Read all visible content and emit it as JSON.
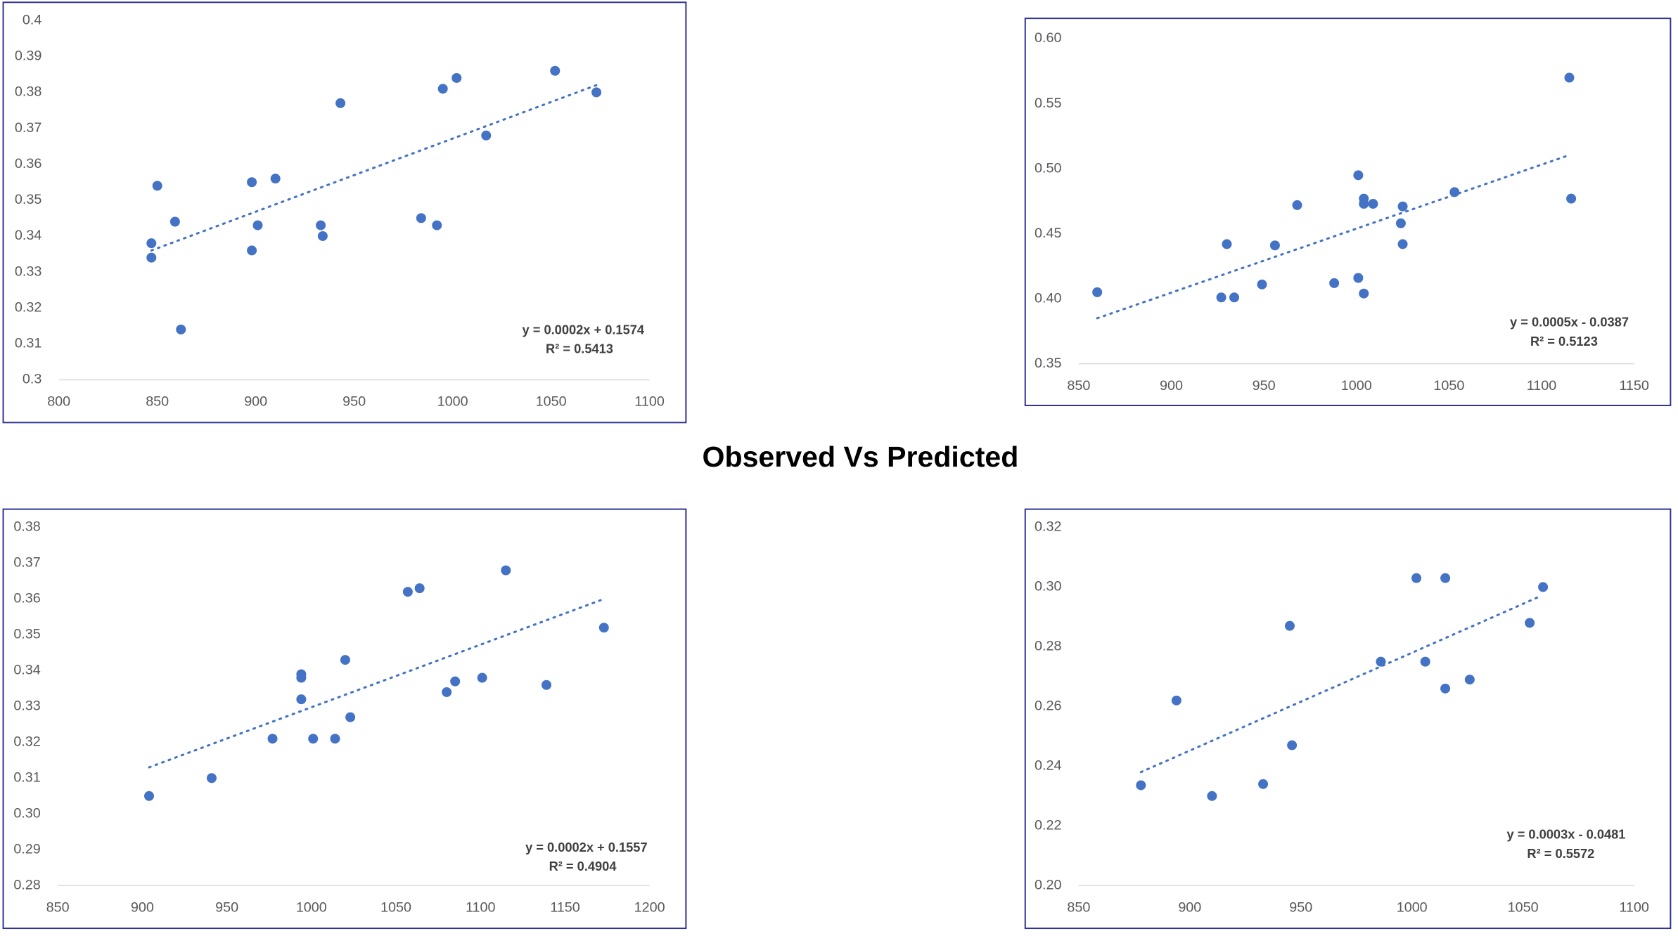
{
  "title": "Observed Vs Predicted",
  "chart_data": [
    {
      "type": "scatter",
      "color": "#4472c4",
      "x": [
        847,
        847,
        850,
        859,
        862,
        898,
        898,
        901,
        910,
        933,
        934,
        943,
        984,
        992,
        995,
        1002,
        1017,
        1052,
        1073
      ],
      "values": [
        0.338,
        0.334,
        0.354,
        0.344,
        0.314,
        0.355,
        0.336,
        0.343,
        0.356,
        0.343,
        0.34,
        0.377,
        0.345,
        0.343,
        0.381,
        0.384,
        0.368,
        0.386,
        0.38
      ],
      "trendline": {
        "x": [
          847,
          1073
        ],
        "values": [
          0.336,
          0.382
        ]
      },
      "annotation": [
        "y = 0.0002x + 0.1574",
        "R² = 0.5413"
      ],
      "xlim": [
        800,
        1100
      ],
      "xticks": [
        800,
        850,
        900,
        950,
        1000,
        1050,
        1100
      ],
      "ylim": [
        0.3,
        0.4
      ],
      "yticks": [
        0.4,
        0.39,
        0.38,
        0.37,
        0.36,
        0.35,
        0.34,
        0.33,
        0.32,
        0.31,
        0.3
      ]
    },
    {
      "type": "scatter",
      "color": "#4472c4",
      "x": [
        860,
        927,
        930,
        934,
        949,
        956,
        968,
        988,
        1001,
        1001,
        1004,
        1004,
        1004,
        1009,
        1024,
        1025,
        1025,
        1053,
        1115,
        1116
      ],
      "values": [
        0.405,
        0.401,
        0.442,
        0.401,
        0.411,
        0.441,
        0.472,
        0.412,
        0.495,
        0.416,
        0.404,
        0.477,
        0.473,
        0.473,
        0.458,
        0.471,
        0.442,
        0.482,
        0.57,
        0.477
      ],
      "trendline": {
        "x": [
          860,
          1114
        ],
        "values": [
          0.385,
          0.51
        ]
      },
      "annotation": [
        "y = 0.0005x - 0.0387",
        "R² = 0.5123"
      ],
      "xlim": [
        850,
        1150
      ],
      "xticks": [
        850,
        900,
        950,
        1000,
        1050,
        1100,
        1150
      ],
      "ylim": [
        0.35,
        0.6
      ],
      "yticks": [
        {
          "value": 0.6,
          "label": "0.60"
        },
        0.55,
        {
          "value": 0.5,
          "label": "0.50"
        },
        0.45,
        {
          "value": 0.4,
          "label": "0.40"
        },
        0.35
      ]
    },
    {
      "type": "scatter",
      "color": "#4472c4",
      "x": [
        904,
        941,
        977,
        994,
        994,
        994,
        1001,
        1014,
        1020,
        1023,
        1057,
        1064,
        1080,
        1085,
        1101,
        1115,
        1139,
        1173
      ],
      "values": [
        0.305,
        0.31,
        0.321,
        0.339,
        0.338,
        0.332,
        0.321,
        0.321,
        0.343,
        0.327,
        0.362,
        0.363,
        0.334,
        0.337,
        0.338,
        0.368,
        0.336,
        0.352
      ],
      "trendline": {
        "x": [
          904,
          1173
        ],
        "values": [
          0.313,
          0.36
        ]
      },
      "annotation": [
        "y = 0.0002x + 0.1557",
        "R² = 0.4904"
      ],
      "xlim": [
        850,
        1200
      ],
      "xticks": [
        850,
        900,
        950,
        1000,
        1050,
        1100,
        1150,
        1200
      ],
      "ylim": [
        0.28,
        0.38
      ],
      "yticks": [
        0.38,
        0.37,
        0.36,
        0.35,
        0.34,
        0.33,
        0.32,
        0.31,
        {
          "value": 0.3,
          "label": "0.30"
        },
        0.29,
        0.28
      ]
    },
    {
      "type": "scatter",
      "color": "#4472c4",
      "x": [
        878,
        894,
        910,
        933,
        945,
        946,
        986,
        1002,
        1006,
        1015,
        1015,
        1026,
        1053,
        1059
      ],
      "values": [
        0.2336,
        0.262,
        0.23,
        0.234,
        0.287,
        0.247,
        0.275,
        0.303,
        0.275,
        0.303,
        0.266,
        0.269,
        0.288,
        0.3
      ],
      "trendline": {
        "x": [
          878,
          1058
        ],
        "values": [
          0.238,
          0.297
        ]
      },
      "annotation": [
        "y = 0.0003x - 0.0481",
        "R² = 0.5572"
      ],
      "xlim": [
        850,
        1100
      ],
      "xticks": [
        850,
        900,
        950,
        1000,
        1050,
        1100
      ],
      "ylim": [
        0.2,
        0.32
      ],
      "yticks": [
        0.32,
        {
          "value": 0.3,
          "label": "0.30"
        },
        0.28,
        0.26,
        0.24,
        0.22,
        {
          "value": 0.2,
          "label": "0.20"
        }
      ]
    }
  ]
}
